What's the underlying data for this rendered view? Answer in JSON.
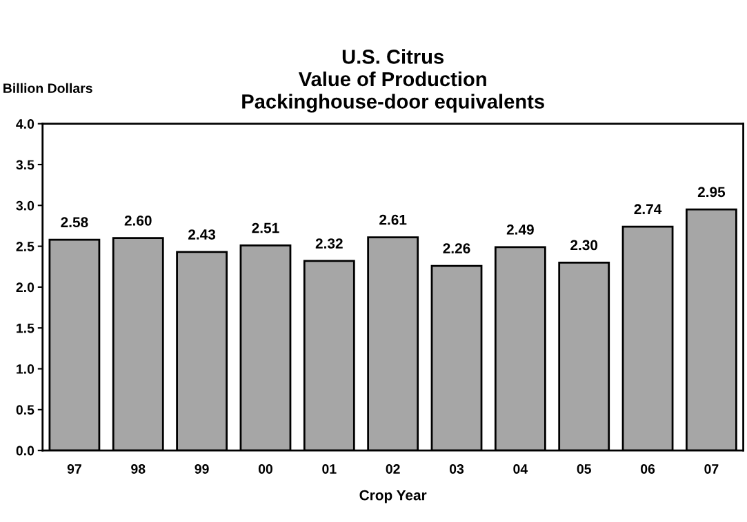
{
  "chart_data": {
    "type": "bar",
    "title": "U.S. Citrus\nValue of Production\nPackinghouse-door equivalents",
    "xlabel": "Crop Year",
    "ylabel": "Billion Dollars",
    "categories": [
      "97",
      "98",
      "99",
      "00",
      "01",
      "02",
      "03",
      "04",
      "05",
      "06",
      "07"
    ],
    "values": [
      2.58,
      2.6,
      2.43,
      2.51,
      2.32,
      2.61,
      2.26,
      2.49,
      2.3,
      2.74,
      2.95
    ],
    "value_labels": [
      "2.58",
      "2.60",
      "2.43",
      "2.51",
      "2.32",
      "2.61",
      "2.26",
      "2.49",
      "2.30",
      "2.74",
      "2.95"
    ],
    "color": "#a6a6a6",
    "ylim": [
      0,
      4
    ],
    "yticks": [
      {
        "value": 0,
        "label": "0.0"
      },
      {
        "value": 0.5,
        "label": "0.5"
      },
      {
        "value": 1,
        "label": "1.0"
      },
      {
        "value": 1.5,
        "label": "1.5"
      },
      {
        "value": 2,
        "label": "2.0"
      },
      {
        "value": 2.5,
        "label": "2.5"
      },
      {
        "value": 3,
        "label": "3.0"
      },
      {
        "value": 3.5,
        "label": "3.5"
      },
      {
        "value": 4,
        "label": "4.0"
      }
    ],
    "grid": false
  }
}
